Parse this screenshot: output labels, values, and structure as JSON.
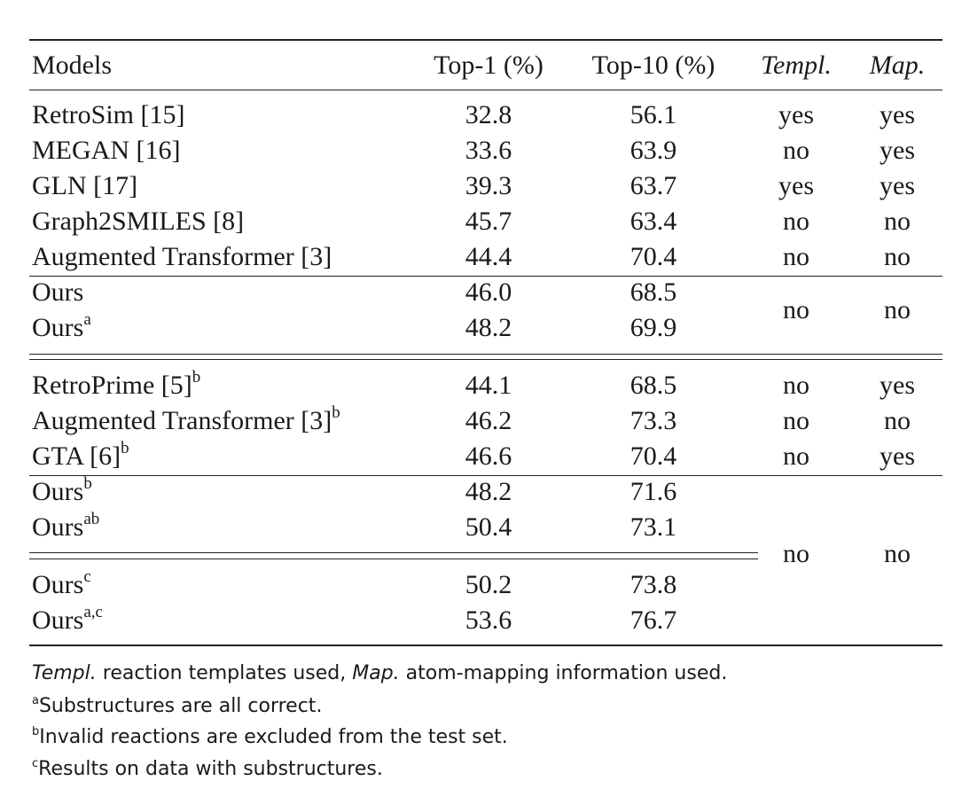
{
  "headers": {
    "models": "Models",
    "top1": "Top-1 (%)",
    "top10": "Top-10 (%)",
    "templ": "Templ.",
    "map": "Map."
  },
  "rows": [
    {
      "model": "RetroSim [15]",
      "sup": "",
      "top1": "32.8",
      "top10": "56.1",
      "templ": "yes",
      "map": "yes"
    },
    {
      "model": "MEGAN [16]",
      "sup": "",
      "top1": "33.6",
      "top10": "63.9",
      "templ": "no",
      "map": "yes"
    },
    {
      "model": "GLN [17]",
      "sup": "",
      "top1": "39.3",
      "top10": "63.7",
      "templ": "yes",
      "map": "yes"
    },
    {
      "model": "Graph2SMILES [8]",
      "sup": "",
      "top1": "45.7",
      "top10": "63.4",
      "templ": "no",
      "map": "no"
    },
    {
      "model": "Augmented Transformer [3]",
      "sup": "",
      "top1": "44.4",
      "top10": "70.4",
      "templ": "no",
      "map": "no"
    },
    {
      "model": "Ours",
      "sup": "",
      "top1": "46.0",
      "top10": "68.5"
    },
    {
      "model": "Ours",
      "sup": "a",
      "top1": "48.2",
      "top10": "69.9"
    },
    {
      "model": "RetroPrime [5]",
      "sup": "b",
      "top1": "44.1",
      "top10": "68.5",
      "templ": "no",
      "map": "yes"
    },
    {
      "model": "Augmented Transformer [3]",
      "sup": "b",
      "top1": "46.2",
      "top10": "73.3",
      "templ": "no",
      "map": "no"
    },
    {
      "model": "GTA [6]",
      "sup": "b",
      "top1": "46.6",
      "top10": "70.4",
      "templ": "no",
      "map": "yes"
    },
    {
      "model": "Ours",
      "sup": "b",
      "top1": "48.2",
      "top10": "71.6"
    },
    {
      "model": "Ours",
      "sup": "ab",
      "top1": "50.4",
      "top10": "73.1"
    },
    {
      "model": "Ours",
      "sup": "c",
      "top1": "50.2",
      "top10": "73.8"
    },
    {
      "model": "Ours",
      "sup": "a,c",
      "top1": "53.6",
      "top10": "76.7"
    }
  ],
  "merged": [
    {
      "templ": "no",
      "map": "no"
    },
    {
      "templ": "no",
      "map": "no"
    }
  ],
  "footnotes": {
    "templ_term": "Templ.",
    "templ_text": " reaction templates used, ",
    "map_term": "Map.",
    "map_text": " atom-mapping information used.",
    "a_mark": "a",
    "a_text": "Substructures are all correct.",
    "b_mark": "b",
    "b_text": "Invalid reactions are excluded from the test set.",
    "c_mark": "c",
    "c_text": "Results on data with substructures."
  }
}
